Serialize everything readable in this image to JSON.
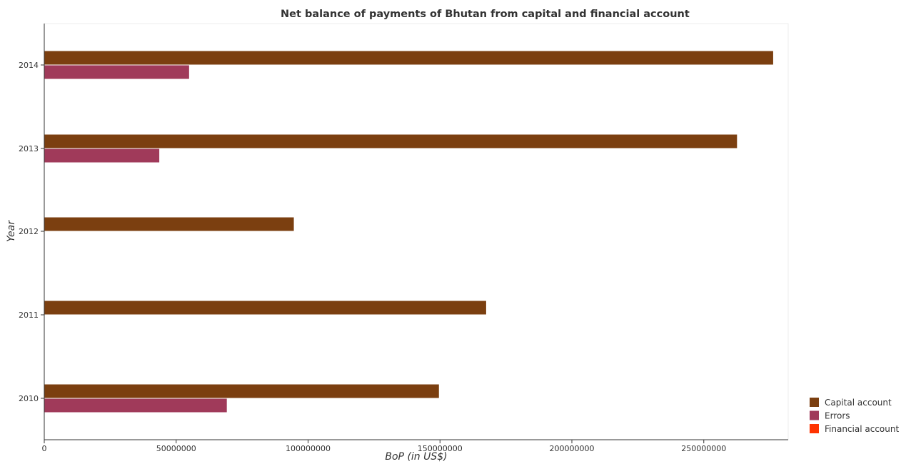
{
  "chart_data": {
    "type": "bar",
    "orientation": "horizontal",
    "title": "Net balance of payments of Bhutan from capital and financial account",
    "xlabel": "BoP (in US$)",
    "ylabel": "Year",
    "categories": [
      "2010",
      "2011",
      "2012",
      "2013",
      "2014"
    ],
    "series": [
      {
        "name": "Capital account",
        "color": "#7b3f10",
        "values": [
          149600000,
          167500000,
          94600000,
          262600000,
          276300000
        ]
      },
      {
        "name": "Errors",
        "color": "#a03a5a",
        "values": [
          69200000,
          0,
          0,
          43600000,
          54900000
        ]
      },
      {
        "name": "Financial account",
        "color": "#ff3300",
        "values": [
          0,
          0,
          0,
          0,
          0
        ]
      }
    ],
    "xlim": [
      0,
      282000000
    ],
    "xticks": [
      0,
      50000000,
      100000000,
      150000000,
      200000000,
      250000000
    ],
    "xtick_labels": [
      "0",
      "50000000",
      "100000000",
      "150000000",
      "200000000",
      "250000000"
    ],
    "legend_position": "bottom-right",
    "grid": false
  }
}
